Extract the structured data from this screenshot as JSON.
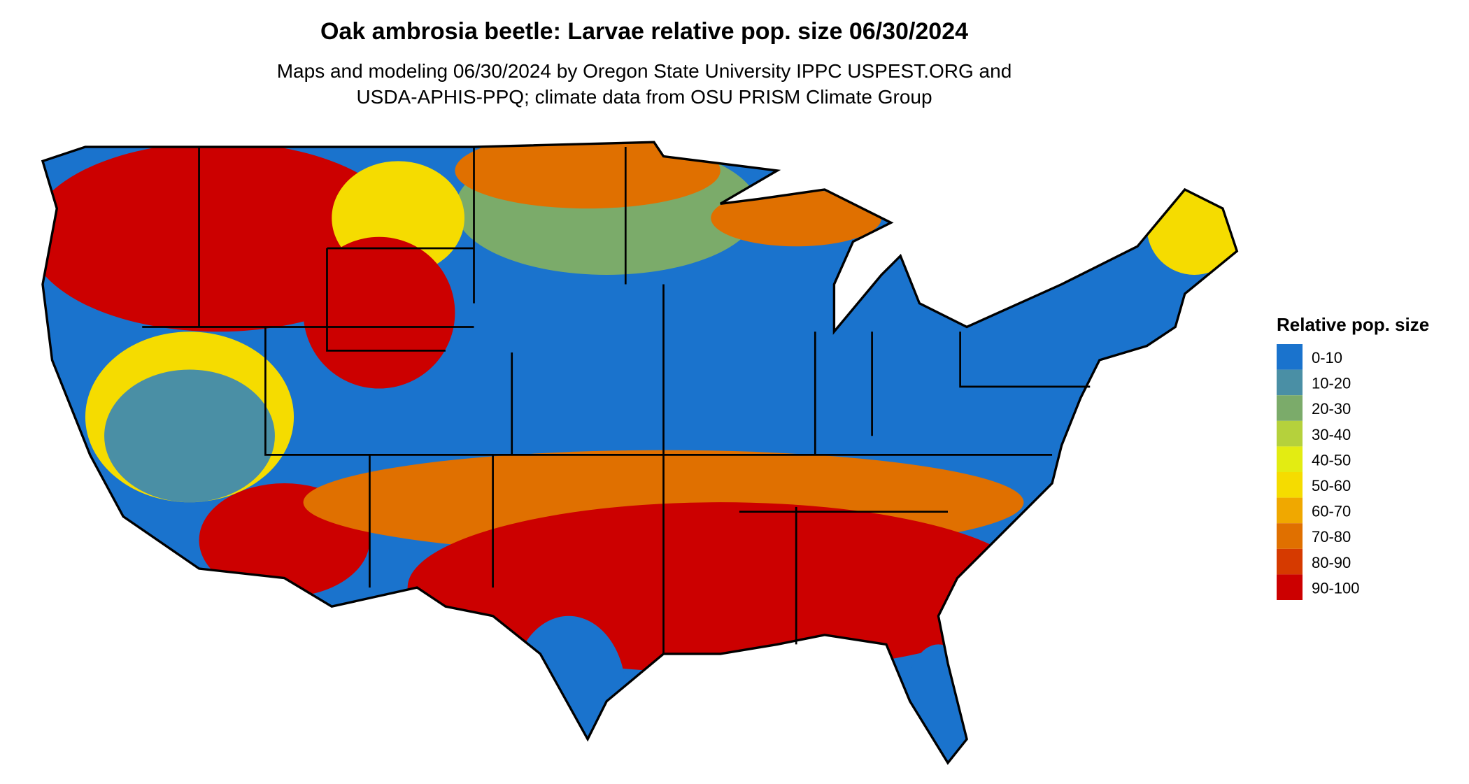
{
  "header": {
    "title": "Oak ambrosia beetle: Larvae relative pop. size 06/30/2024",
    "subtitle_lines": [
      "Maps and modeling 06/30/2024 by Oregon State University IPPC USPEST.ORG and",
      "USDA-APHIS-PPQ; climate data from OSU PRISM Climate Group"
    ]
  },
  "legend": {
    "title": "Relative pop. size",
    "items": [
      {
        "label": "0-10",
        "color": "#1a73cd"
      },
      {
        "label": "10-20",
        "color": "#4a8fa5"
      },
      {
        "label": "20-30",
        "color": "#7bab6a"
      },
      {
        "label": "30-40",
        "color": "#b5d13c"
      },
      {
        "label": "40-50",
        "color": "#e3ec12"
      },
      {
        "label": "50-60",
        "color": "#f5dc00"
      },
      {
        "label": "60-70",
        "color": "#f0a800"
      },
      {
        "label": "70-80",
        "color": "#e07000"
      },
      {
        "label": "80-90",
        "color": "#d63a00"
      },
      {
        "label": "90-100",
        "color": "#cc0000"
      }
    ]
  }
}
